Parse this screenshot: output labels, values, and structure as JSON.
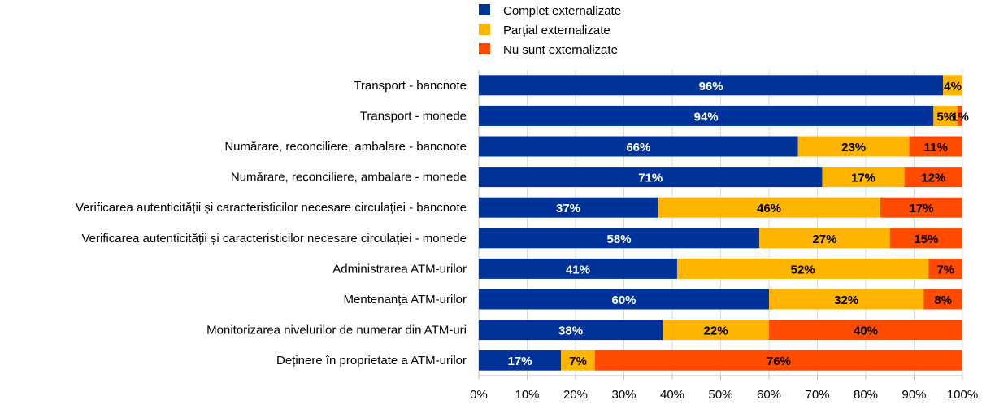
{
  "chart_data": {
    "type": "bar",
    "orientation": "horizontal",
    "stacked": true,
    "categories": [
      "Transport - bancnote",
      "Transport - monede",
      "Numărare, reconciliere, ambalare - bancnote",
      "Numărare, reconciliere, ambalare - monede",
      "Verificarea autenticității și caracteristicilor necesare circulației - bancnote",
      "Verificarea autenticității și caracteristicilor necesare circulației - monede",
      "Administrarea ATM-urilor",
      "Mentenanța ATM-urilor",
      "Monitorizarea nivelurilor de numerar din ATM-uri",
      "Deținere în proprietate a ATM-urilor"
    ],
    "series": [
      {
        "name": "Complet externalizate",
        "color": "#003399",
        "label_color": "#ffffff",
        "values": [
          96,
          94,
          66,
          71,
          37,
          58,
          41,
          60,
          38,
          17
        ]
      },
      {
        "name": "Parțial externalizate",
        "color": "#FFB400",
        "label_color": "#000000",
        "values": [
          4,
          5,
          23,
          17,
          46,
          27,
          52,
          32,
          22,
          7
        ]
      },
      {
        "name": "Nu sunt externalizate",
        "color": "#FF4B00",
        "label_color": "#000000",
        "values": [
          0,
          1,
          11,
          12,
          17,
          15,
          7,
          8,
          40,
          76
        ]
      }
    ],
    "xlim": [
      0,
      100
    ],
    "xticks": [
      "0%",
      "10%",
      "20%",
      "30%",
      "40%",
      "50%",
      "60%",
      "70%",
      "80%",
      "90%",
      "100%"
    ],
    "grid": true,
    "legend": "top-center",
    "title": "",
    "xlabel": "",
    "ylabel": ""
  }
}
